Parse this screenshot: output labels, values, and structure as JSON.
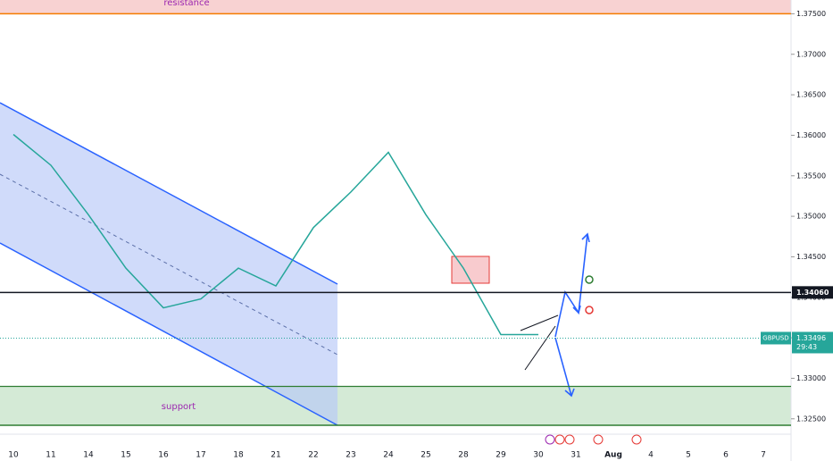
{
  "chart_data": {
    "type": "line",
    "categories": [
      "10",
      "11",
      "14",
      "15",
      "16",
      "17",
      "18",
      "21",
      "22",
      "23",
      "24",
      "25",
      "28",
      "29",
      "30",
      "31",
      "Aug",
      "4",
      "5",
      "6",
      "7"
    ],
    "series": [
      {
        "name": "GBPUSD",
        "color": "#26a69a",
        "values": [
          1.3601,
          1.3563,
          1.3502,
          1.3436,
          1.3387,
          1.3398,
          1.3436,
          1.3414,
          1.3486,
          1.353,
          1.3579,
          1.3502,
          1.3436,
          1.3354,
          1.3354,
          null,
          null,
          null,
          null,
          null,
          null
        ]
      }
    ],
    "ylim": [
      1.3231,
      1.3767
    ],
    "yticks": [
      {
        "value": 1.325,
        "label": "1.32500"
      },
      {
        "value": 1.33,
        "label": "1.33000"
      },
      {
        "value": 1.335,
        "label": "1.33500"
      },
      {
        "value": 1.34,
        "label": "1.34000"
      },
      {
        "value": 1.345,
        "label": "1.34500"
      },
      {
        "value": 1.35,
        "label": "1.35000"
      },
      {
        "value": 1.355,
        "label": "1.35500"
      },
      {
        "value": 1.36,
        "label": "1.36000"
      },
      {
        "value": 1.365,
        "label": "1.36500"
      },
      {
        "value": 1.37,
        "label": "1.37000"
      },
      {
        "value": 1.375,
        "label": "1.37500"
      }
    ],
    "zones": [
      {
        "label": "resistance",
        "low": 1.375,
        "high": 1.3767,
        "color": "#f8d2d2",
        "edge": "#f57c00"
      },
      {
        "label": "support",
        "low": 1.3242,
        "high": 1.329,
        "color": "#d4ead6",
        "edge": "#2e7d32"
      }
    ],
    "level": {
      "value": 1.3406,
      "label": "1.34060"
    },
    "current": {
      "name": "GBPUSD",
      "value": 1.33496,
      "label": "1.33496",
      "timer": "29:43"
    }
  }
}
